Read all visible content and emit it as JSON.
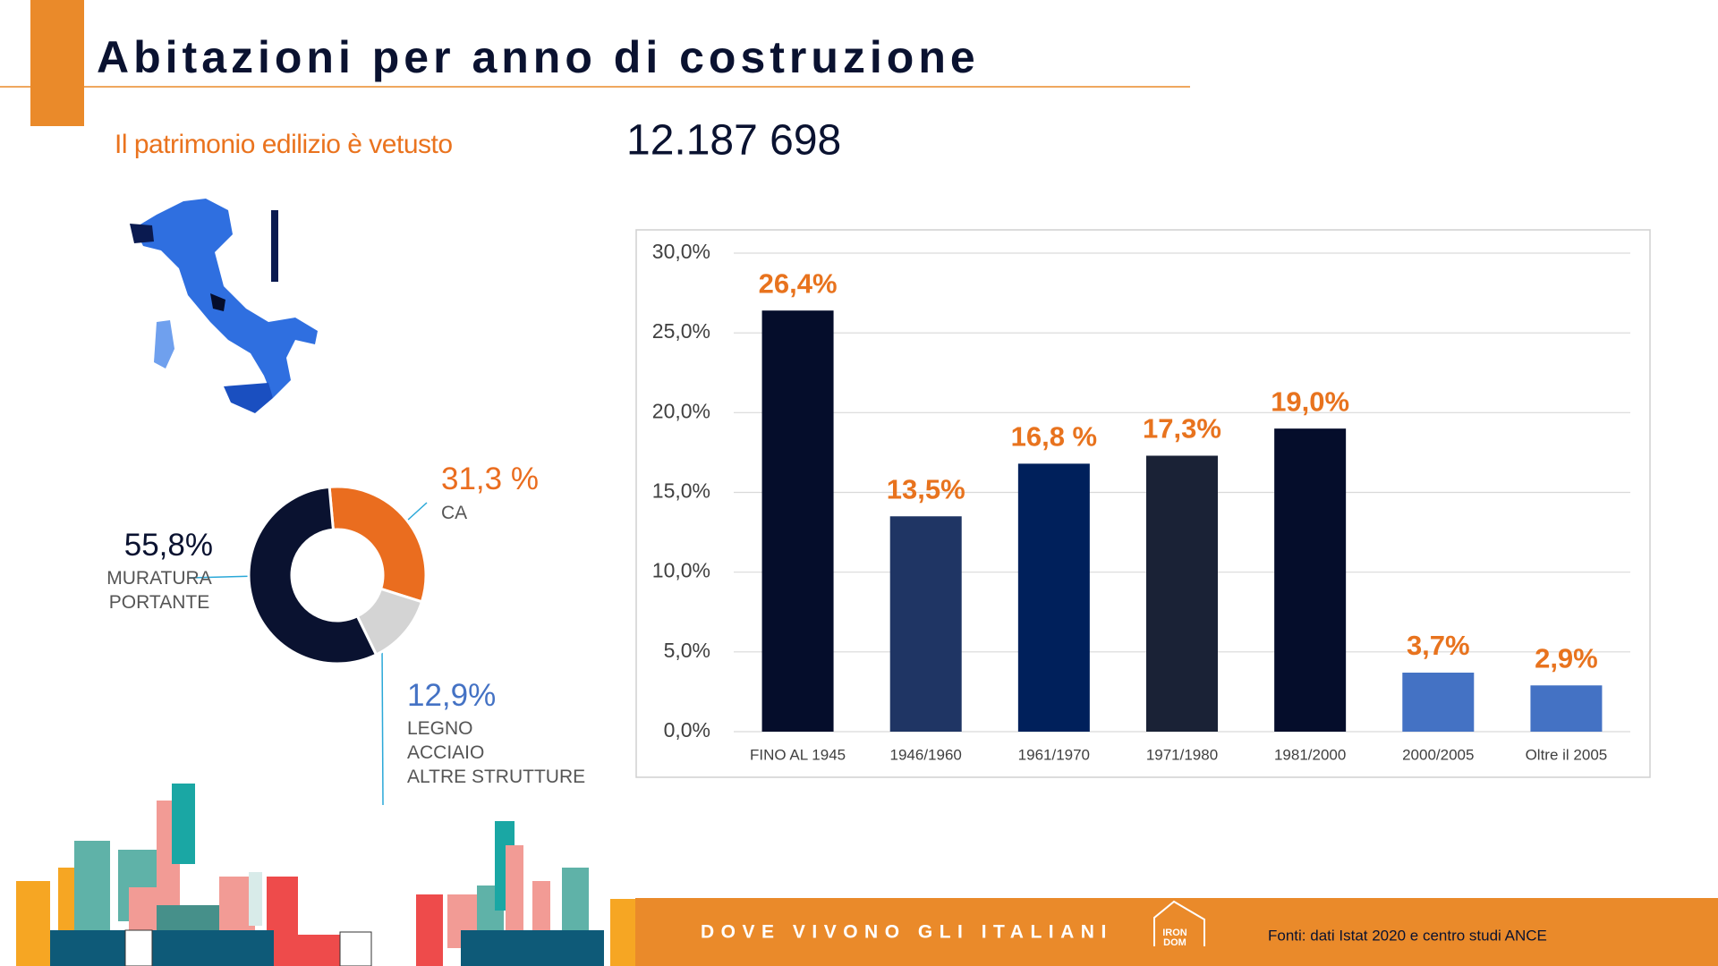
{
  "title": "Abitazioni per anno di costruzione",
  "subtitle": "Il patrimonio edilizio è vetusto",
  "total": "12.187 698",
  "footer": "DOVE VIVONO GLI ITALIANI",
  "logo": [
    "IRON",
    "DOM"
  ],
  "source": "Fonti: dati Istat 2020 e centro studi ANCE",
  "chart_data": [
    {
      "type": "bar",
      "categories": [
        "FINO AL 1945",
        "1946/1960",
        "1961/1970",
        "1971/1980",
        "1981/2000",
        "2000/2005",
        "Oltre il 2005"
      ],
      "values": [
        26.4,
        13.5,
        16.8,
        17.3,
        19.0,
        3.7,
        2.9
      ],
      "value_labels": [
        "26,4%",
        "13,5%",
        "16,8 %",
        "17,3%",
        "19,0%",
        "3,7%",
        "2,9%"
      ],
      "colors": [
        "#050d2b",
        "#1f3564",
        "#00205b",
        "#1a2236",
        "#050d2b",
        "#4472c4",
        "#4472c4"
      ],
      "label_color": "#e8731e",
      "ylim": [
        0,
        30
      ],
      "yticks": [
        {
          "value": 0,
          "label": "0,0%"
        },
        {
          "value": 5,
          "label": "5,0%"
        },
        {
          "value": 10,
          "label": "10,0%"
        },
        {
          "value": 15,
          "label": "15,0%"
        },
        {
          "value": 20,
          "label": "20,0%"
        },
        {
          "value": 25,
          "label": "25,0%"
        },
        {
          "value": 30,
          "label": "30,0%"
        }
      ],
      "grid": true
    },
    {
      "type": "pie",
      "categories": [
        "CA",
        "LEGNO\nACCIAIO\nALTRE STRUTTURE",
        "MURATURA\nPORTANTE"
      ],
      "values": [
        31.3,
        12.9,
        55.8
      ],
      "value_labels": [
        "31,3 %",
        "12,9%",
        "55,8%"
      ],
      "colors": [
        "#ea6d1f",
        "#d4d4d4",
        "#0a1230"
      ],
      "label_colors": [
        "#ea6d1f",
        "#4472c4",
        "#0a1230"
      ]
    }
  ]
}
